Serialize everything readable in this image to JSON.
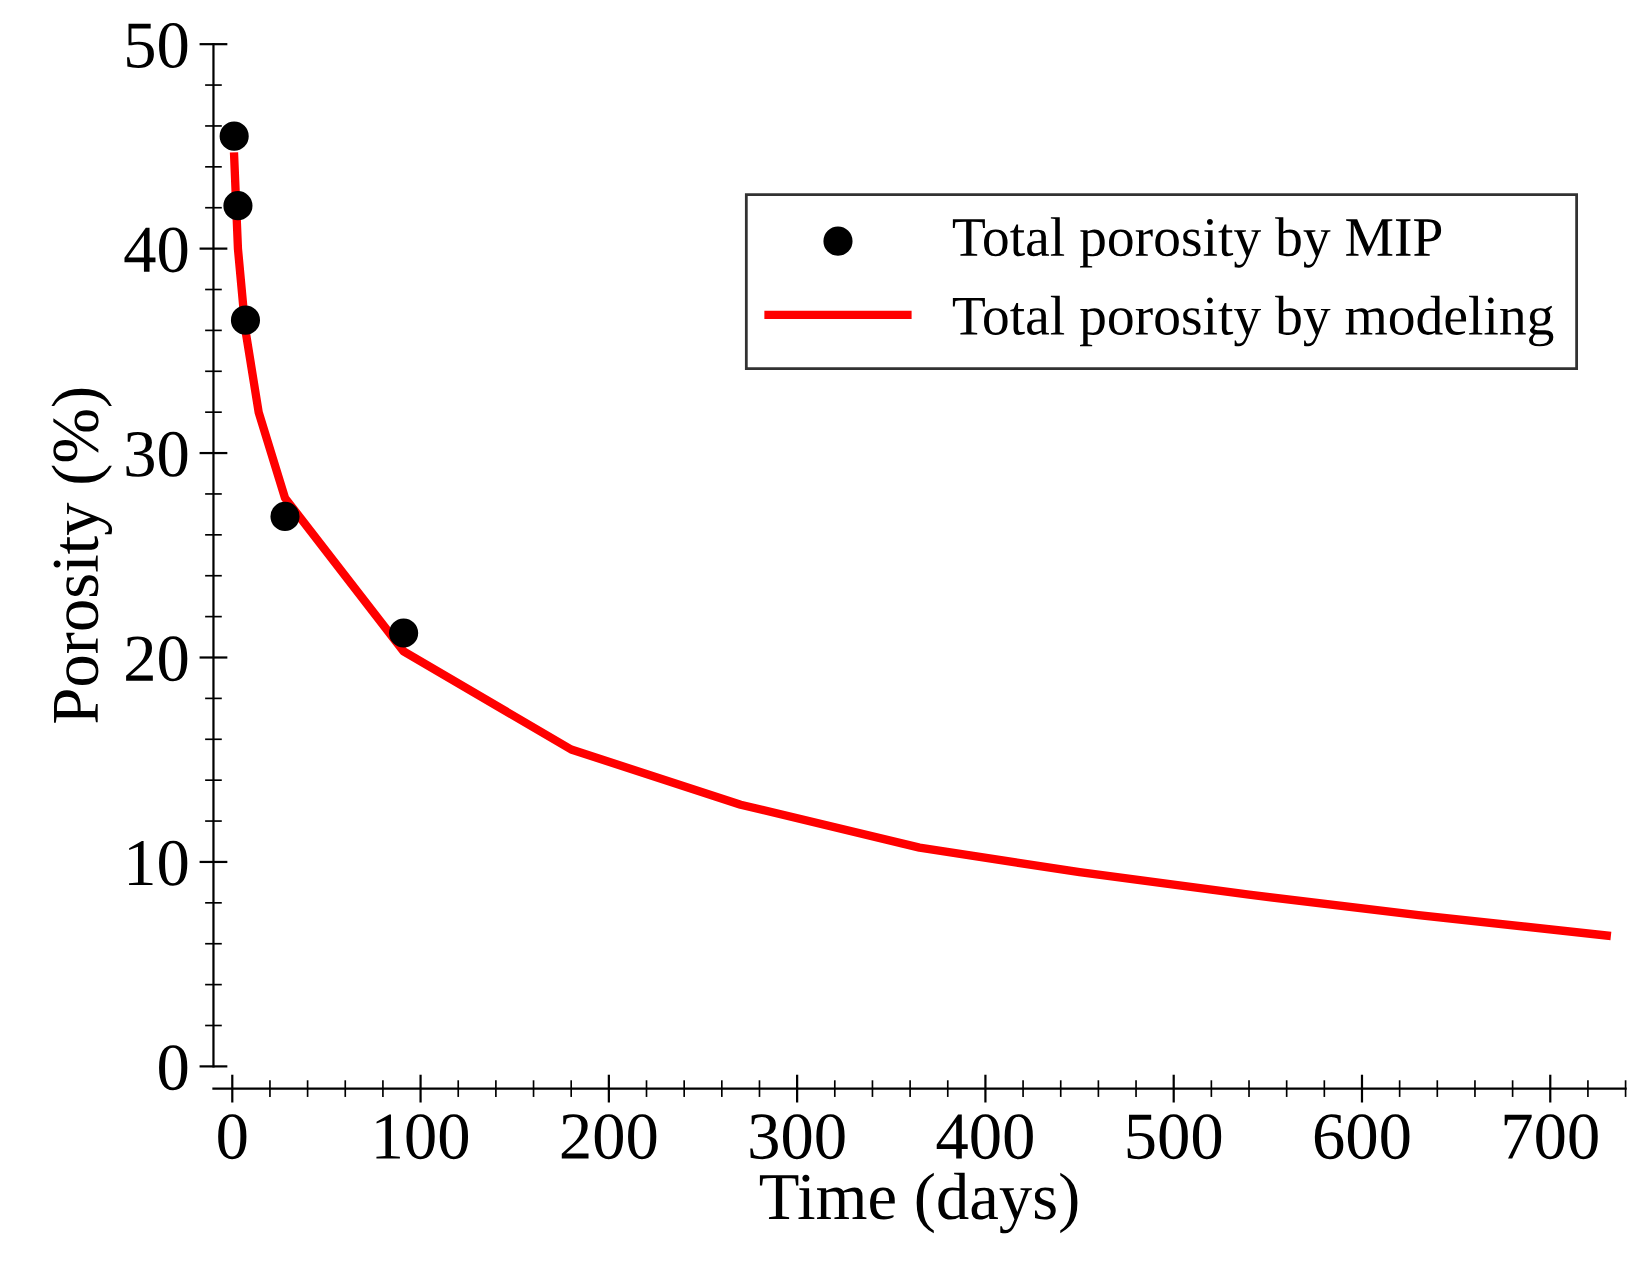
{
  "chart_data": {
    "type": "line",
    "xlabel": "Time (days)",
    "ylabel": "Porosity (%)",
    "xlim": [
      -10,
      740
    ],
    "ylim": [
      0,
      50
    ],
    "xticks": [
      0,
      100,
      200,
      300,
      400,
      500,
      600,
      700
    ],
    "yticks": [
      0,
      10,
      20,
      30,
      40,
      50
    ],
    "legend": "top right",
    "grid": false,
    "series": [
      {
        "name": "Total porosity by MIP",
        "type": "scatter",
        "color": "#000000",
        "marker": "circle",
        "x": [
          1,
          3,
          7,
          28,
          91
        ],
        "values": [
          45.5,
          42.1,
          36.5,
          26.9,
          21.2
        ]
      },
      {
        "name": "Total porosity by modeling",
        "color": "#ff0000",
        "line_style": "solid",
        "x": [
          1,
          3,
          7,
          14,
          28,
          91,
          180,
          270,
          365,
          450,
          540,
          630,
          730
        ],
        "values": [
          44.5,
          40,
          36,
          32,
          27.8,
          20.3,
          15.5,
          12.8,
          10.7,
          9.5,
          8.4,
          7.4,
          6.4
        ]
      }
    ]
  }
}
